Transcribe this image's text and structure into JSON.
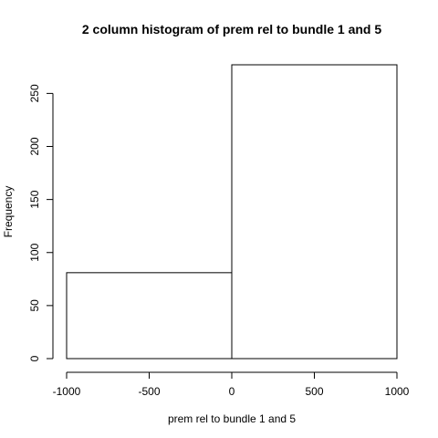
{
  "chart_data": {
    "type": "bar",
    "histogram": true,
    "title": "2 column histogram of prem rel to bundle 1 and 5",
    "xlabel": "prem rel to bundle 1 and 5",
    "ylabel": "Frequency",
    "bins": [
      {
        "from": -1000,
        "to": 0,
        "count": 81
      },
      {
        "from": 0,
        "to": 1000,
        "count": 277
      }
    ],
    "xlim": [
      -1000,
      1000
    ],
    "ylim": [
      0,
      277
    ],
    "x_ticks": [
      -1000,
      -500,
      0,
      500,
      1000
    ],
    "x_tick_labels": [
      "-1000",
      "-500",
      "0",
      "500",
      "1000"
    ],
    "y_ticks": [
      0,
      50,
      100,
      150,
      200,
      250
    ],
    "y_tick_labels": [
      "0",
      "50",
      "100",
      "150",
      "200",
      "250"
    ],
    "grid": false,
    "bar_fill": "#ffffff",
    "bar_stroke": "#000000"
  }
}
